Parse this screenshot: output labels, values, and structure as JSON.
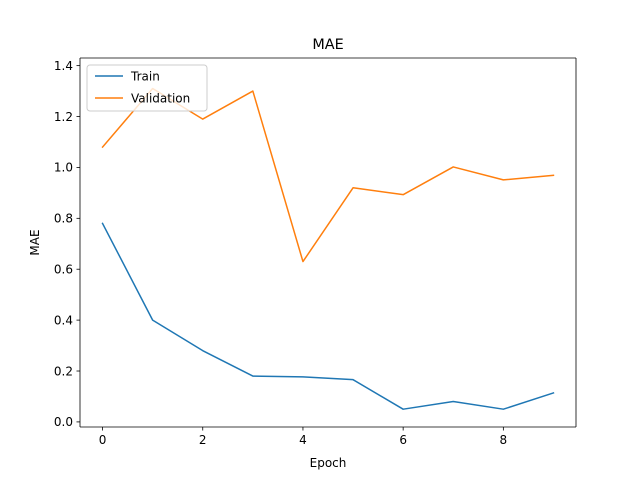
{
  "chart_data": {
    "type": "line",
    "title": "MAE",
    "xlabel": "Epoch",
    "ylabel": "MAE",
    "x": [
      0,
      1,
      2,
      3,
      4,
      5,
      6,
      7,
      8,
      9
    ],
    "xlim": [
      -0.45,
      9.45
    ],
    "ylim": [
      -0.02,
      1.43
    ],
    "xticks": [
      0,
      2,
      4,
      6,
      8
    ],
    "xtick_labels": [
      "0",
      "2",
      "4",
      "6",
      "8"
    ],
    "yticks": [
      0.0,
      0.2,
      0.4,
      0.6,
      0.8,
      1.0,
      1.2,
      1.4
    ],
    "ytick_labels": [
      "0.0",
      "0.2",
      "0.4",
      "0.6",
      "0.8",
      "1.0",
      "1.2",
      "1.4"
    ],
    "grid": false,
    "legend_position": "top-left",
    "series": [
      {
        "name": "Train",
        "color": "#1f77b4",
        "values": [
          0.78,
          0.4,
          0.28,
          0.18,
          0.177,
          0.166,
          0.05,
          0.08,
          0.05,
          0.114
        ]
      },
      {
        "name": "Validation",
        "color": "#ff7f0e",
        "values": [
          1.08,
          1.31,
          1.19,
          1.3,
          0.63,
          0.92,
          0.893,
          1.002,
          0.951,
          0.969
        ]
      }
    ]
  }
}
